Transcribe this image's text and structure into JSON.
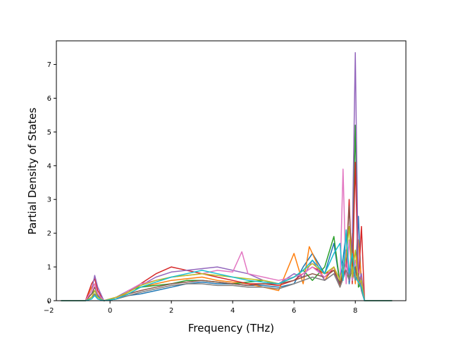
{
  "chart_data": {
    "type": "line",
    "title": "",
    "xlabel": "Frequency (THz)",
    "ylabel": "Partial Density of States",
    "xlim": [
      -1.75,
      9.65
    ],
    "ylim": [
      0,
      7.7
    ],
    "xticks": [
      -2,
      0,
      2,
      4,
      6,
      8
    ],
    "yticks": [
      0,
      1,
      2,
      3,
      4,
      5,
      6,
      7
    ],
    "grid": false,
    "legend": "none",
    "series_count": 10,
    "colors": [
      "#1f77b4",
      "#ff7f0e",
      "#2ca02c",
      "#d62728",
      "#9467bd",
      "#8c564b",
      "#e377c2",
      "#7f7f7f",
      "#bcbd22",
      "#17becf"
    ],
    "series": [
      {
        "x": [
          -1.6,
          -0.8,
          -0.6,
          -0.5,
          -0.4,
          -0.2,
          0.2,
          0.6,
          1.0,
          1.5,
          2.0,
          2.5,
          3.0,
          3.5,
          4.0,
          4.5,
          5.0,
          5.5,
          6.0,
          6.3,
          6.6,
          7.0,
          7.3,
          7.5,
          7.7,
          7.8,
          7.9,
          8.0,
          8.1,
          8.2,
          8.3,
          8.5,
          9.2
        ],
        "y": [
          0,
          0,
          0.2,
          0.3,
          0.15,
          0,
          0.05,
          0.15,
          0.2,
          0.3,
          0.4,
          0.5,
          0.55,
          0.5,
          0.5,
          0.45,
          0.45,
          0.4,
          0.5,
          1.0,
          1.4,
          0.8,
          1.7,
          0.5,
          2.0,
          0.5,
          1.2,
          0.6,
          2.5,
          0.3,
          0,
          0,
          0
        ]
      },
      {
        "x": [
          -1.6,
          -0.8,
          -0.6,
          -0.5,
          -0.4,
          -0.2,
          0.2,
          0.6,
          1.0,
          1.5,
          2.0,
          2.5,
          3.0,
          3.5,
          4.0,
          4.5,
          5.0,
          5.5,
          6.0,
          6.3,
          6.5,
          7.0,
          7.3,
          7.5,
          7.7,
          7.8,
          7.9,
          8.0,
          8.1,
          8.2,
          8.3,
          8.5,
          9.2
        ],
        "y": [
          0,
          0,
          0.4,
          0.5,
          0.2,
          0,
          0.1,
          0.2,
          0.4,
          0.5,
          0.6,
          0.65,
          0.7,
          0.6,
          0.55,
          0.5,
          0.4,
          0.3,
          1.4,
          0.5,
          1.6,
          0.6,
          1.0,
          0.4,
          1.5,
          0.6,
          2.0,
          0.5,
          1.8,
          0.6,
          0,
          0,
          0
        ]
      },
      {
        "x": [
          -1.6,
          -0.8,
          -0.6,
          -0.5,
          -0.4,
          -0.2,
          0.2,
          0.6,
          1.0,
          1.5,
          2.0,
          2.5,
          3.0,
          3.5,
          4.0,
          4.5,
          5.0,
          5.5,
          6.0,
          6.3,
          6.6,
          7.0,
          7.3,
          7.5,
          7.7,
          7.8,
          7.9,
          8.0,
          8.1,
          8.2,
          8.3,
          8.5,
          9.2
        ],
        "y": [
          0,
          0,
          0.1,
          0.2,
          0.1,
          0,
          0.05,
          0.3,
          0.4,
          0.45,
          0.5,
          0.6,
          0.6,
          0.55,
          0.5,
          0.55,
          0.6,
          0.5,
          0.7,
          0.9,
          0.6,
          1.0,
          1.9,
          0.5,
          0.9,
          0.6,
          1.0,
          5.2,
          0.4,
          0.5,
          0,
          0,
          0
        ]
      },
      {
        "x": [
          -1.6,
          -0.8,
          -0.6,
          -0.5,
          -0.4,
          -0.2,
          0.2,
          0.6,
          1.0,
          1.5,
          2.0,
          2.5,
          3.0,
          3.5,
          4.0,
          4.5,
          5.0,
          5.5,
          6.0,
          6.3,
          6.6,
          7.0,
          7.3,
          7.5,
          7.7,
          7.8,
          7.9,
          8.0,
          8.1,
          8.2,
          8.3,
          8.5,
          9.2
        ],
        "y": [
          0,
          0,
          0.5,
          0.65,
          0.3,
          0,
          0.1,
          0.25,
          0.5,
          0.8,
          1.0,
          0.9,
          0.8,
          0.7,
          0.6,
          0.5,
          0.5,
          0.45,
          0.6,
          0.8,
          1.0,
          0.8,
          0.9,
          0.4,
          1.0,
          3.0,
          0.5,
          4.1,
          0.5,
          2.2,
          0,
          0,
          0
        ]
      },
      {
        "x": [
          -1.6,
          -0.8,
          -0.6,
          -0.5,
          -0.4,
          -0.2,
          0.2,
          0.6,
          1.0,
          1.5,
          2.0,
          2.5,
          3.0,
          3.5,
          4.0,
          4.5,
          5.0,
          5.5,
          6.0,
          6.3,
          6.6,
          7.0,
          7.3,
          7.5,
          7.7,
          7.8,
          7.9,
          8.0,
          8.1,
          8.2,
          8.3,
          8.5,
          9.2
        ],
        "y": [
          0,
          0,
          0.3,
          0.75,
          0.4,
          0,
          0.1,
          0.3,
          0.45,
          0.7,
          0.85,
          0.9,
          0.95,
          1.0,
          0.9,
          0.8,
          0.6,
          0.5,
          0.8,
          0.7,
          1.2,
          0.6,
          0.8,
          0.5,
          1.5,
          0.6,
          1.8,
          7.35,
          0.5,
          0.8,
          0,
          0,
          0
        ]
      },
      {
        "x": [
          -1.6,
          -0.8,
          -0.6,
          -0.5,
          -0.4,
          -0.2,
          0.2,
          0.6,
          1.0,
          1.5,
          2.0,
          2.5,
          3.0,
          3.5,
          4.0,
          4.5,
          5.0,
          5.5,
          6.0,
          6.3,
          6.6,
          7.0,
          7.3,
          7.5,
          7.7,
          7.8,
          7.9,
          8.0,
          8.1,
          8.2,
          8.3,
          8.5,
          9.2
        ],
        "y": [
          0,
          0,
          0.2,
          0.4,
          0.2,
          0,
          0.05,
          0.2,
          0.3,
          0.4,
          0.5,
          0.55,
          0.6,
          0.55,
          0.5,
          0.45,
          0.5,
          0.5,
          0.6,
          0.7,
          0.8,
          0.7,
          0.9,
          0.5,
          1.2,
          2.8,
          0.6,
          1.0,
          0.5,
          0.4,
          0,
          0,
          0
        ]
      },
      {
        "x": [
          -1.6,
          -0.8,
          -0.6,
          -0.5,
          -0.4,
          -0.2,
          0.2,
          0.6,
          1.0,
          1.5,
          2.0,
          2.5,
          3.0,
          3.5,
          4.0,
          4.3,
          4.5,
          5.0,
          5.5,
          6.0,
          6.3,
          6.6,
          7.0,
          7.3,
          7.5,
          7.6,
          7.7,
          7.8,
          7.9,
          8.0,
          8.2,
          8.3,
          8.5,
          9.2
        ],
        "y": [
          0,
          0,
          0.3,
          0.5,
          0.2,
          0,
          0.05,
          0.3,
          0.5,
          0.6,
          0.7,
          0.75,
          0.8,
          0.9,
          0.85,
          1.45,
          0.8,
          0.7,
          0.6,
          0.7,
          0.8,
          1.0,
          0.7,
          1.0,
          0.6,
          3.9,
          0.5,
          1.8,
          0.6,
          1.2,
          0.4,
          0,
          0,
          0
        ]
      },
      {
        "x": [
          -1.6,
          -0.8,
          -0.6,
          -0.5,
          -0.4,
          -0.2,
          0.2,
          0.6,
          1.0,
          1.5,
          2.0,
          2.5,
          3.0,
          3.5,
          4.0,
          4.5,
          5.0,
          5.5,
          6.0,
          6.3,
          6.6,
          7.0,
          7.3,
          7.5,
          7.7,
          7.8,
          7.9,
          8.0,
          8.1,
          8.2,
          8.3,
          8.5,
          9.2
        ],
        "y": [
          0,
          0,
          0.1,
          0.2,
          0.1,
          0,
          0.05,
          0.15,
          0.25,
          0.35,
          0.45,
          0.5,
          0.5,
          0.45,
          0.45,
          0.4,
          0.4,
          0.35,
          0.5,
          0.6,
          0.7,
          0.6,
          0.8,
          0.4,
          0.9,
          0.7,
          1.0,
          0.6,
          0.8,
          0.3,
          0,
          0,
          0
        ]
      },
      {
        "x": [
          -1.6,
          -0.8,
          -0.6,
          -0.5,
          -0.4,
          -0.2,
          0.2,
          0.6,
          1.0,
          1.5,
          2.0,
          2.5,
          3.0,
          3.5,
          4.0,
          4.5,
          5.0,
          5.5,
          6.0,
          6.3,
          6.6,
          7.0,
          7.3,
          7.5,
          7.7,
          7.8,
          7.9,
          8.0,
          8.1,
          8.2,
          8.3,
          8.5,
          9.2
        ],
        "y": [
          0,
          0,
          0.1,
          0.3,
          0.1,
          0,
          0.1,
          0.25,
          0.45,
          0.6,
          0.7,
          0.75,
          0.8,
          0.75,
          0.7,
          0.65,
          0.6,
          0.5,
          0.7,
          0.9,
          1.1,
          0.8,
          1.0,
          0.6,
          1.3,
          2.2,
          0.7,
          1.5,
          0.5,
          0.6,
          0,
          0,
          0
        ]
      },
      {
        "x": [
          -1.6,
          -0.8,
          -0.6,
          -0.5,
          -0.4,
          -0.2,
          0.2,
          0.6,
          1.0,
          1.5,
          2.0,
          2.5,
          3.0,
          3.5,
          4.0,
          4.5,
          5.0,
          5.5,
          6.0,
          6.3,
          6.6,
          7.0,
          7.3,
          7.5,
          7.6,
          7.7,
          7.8,
          7.9,
          8.0,
          8.2,
          8.3,
          8.5,
          9.2
        ],
        "y": [
          0,
          0,
          0.05,
          0.15,
          0.05,
          0,
          0.05,
          0.2,
          0.4,
          0.55,
          0.7,
          0.8,
          0.9,
          0.8,
          0.7,
          0.6,
          0.55,
          0.5,
          0.7,
          0.9,
          1.2,
          0.8,
          1.4,
          1.7,
          0.6,
          2.1,
          0.8,
          1.4,
          0.7,
          0.4,
          0,
          0,
          0
        ]
      }
    ]
  }
}
